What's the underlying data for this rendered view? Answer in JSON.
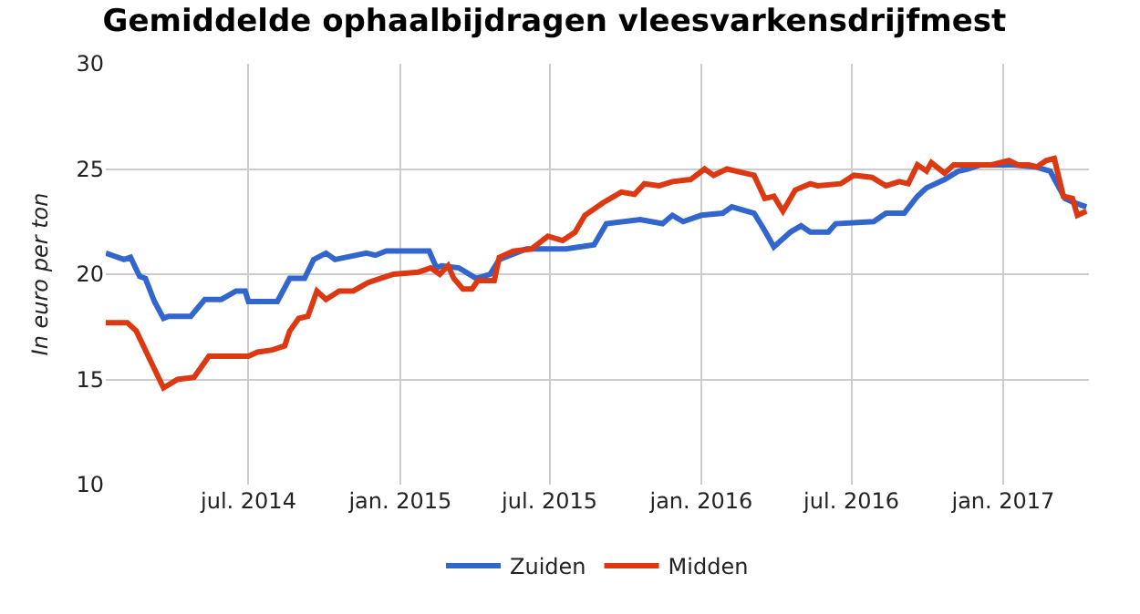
{
  "chart_data": {
    "type": "line",
    "title": "Gemiddelde ophaalbijdragen vleesvarkensdrijfmest",
    "ylabel": "In euro per ton",
    "xlim": [
      "2014-01-09",
      "2017-04-15"
    ],
    "xticks": [
      {
        "value": "2014-07-01",
        "label": "jul. 2014"
      },
      {
        "value": "2015-01-01",
        "label": "jan. 2015"
      },
      {
        "value": "2015-07-01",
        "label": "jul. 2015"
      },
      {
        "value": "2016-01-01",
        "label": "jan. 2016"
      },
      {
        "value": "2016-07-01",
        "label": "jul. 2016"
      },
      {
        "value": "2017-01-01",
        "label": "jan. 2017"
      }
    ],
    "ylim": [
      10,
      30
    ],
    "yticks": [
      10,
      15,
      20,
      25,
      30
    ],
    "grid": true,
    "legend": "bottom",
    "marker": "none",
    "line_style": "solid",
    "series": [
      {
        "name": "Zuiden",
        "color": "#3366cc",
        "x": [
          "2014-01-09",
          "2014-01-31",
          "2014-02-08",
          "2014-02-19",
          "2014-02-26",
          "2014-03-09",
          "2014-03-20",
          "2014-03-26",
          "2014-04-22",
          "2014-05-09",
          "2014-05-29",
          "2014-06-16",
          "2014-06-27",
          "2014-07-01",
          "2014-08-05",
          "2014-08-20",
          "2014-09-07",
          "2014-09-18",
          "2014-10-03",
          "2014-10-14",
          "2014-11-21",
          "2014-12-02",
          "2014-12-15",
          "2015-02-05",
          "2015-02-14",
          "2015-02-20",
          "2015-03-13",
          "2015-04-03",
          "2015-04-20",
          "2015-05-01",
          "2015-06-03",
          "2015-06-24",
          "2015-07-21",
          "2015-08-24",
          "2015-09-08",
          "2015-10-19",
          "2015-11-15",
          "2015-11-27",
          "2015-12-10",
          "2016-01-01",
          "2016-01-27",
          "2016-02-07",
          "2016-03-05",
          "2016-03-16",
          "2016-03-29",
          "2016-04-18",
          "2016-05-01",
          "2016-05-12",
          "2016-06-03",
          "2016-06-12",
          "2016-07-28",
          "2016-08-12",
          "2016-09-03",
          "2016-09-19",
          "2016-09-30",
          "2016-10-22",
          "2016-11-08",
          "2016-11-19",
          "2016-12-05",
          "2017-01-10",
          "2017-02-09",
          "2017-02-27",
          "2017-03-10",
          "2017-03-17",
          "2017-03-28",
          "2017-04-12"
        ],
        "values": [
          21.0,
          20.7,
          20.8,
          19.9,
          19.8,
          18.7,
          17.9,
          18.0,
          18.0,
          18.8,
          18.8,
          19.2,
          19.2,
          18.7,
          18.7,
          19.8,
          19.8,
          20.7,
          21.0,
          20.7,
          21.0,
          20.9,
          21.1,
          21.1,
          20.3,
          20.4,
          20.3,
          19.8,
          20.0,
          20.7,
          21.2,
          21.2,
          21.2,
          21.4,
          22.4,
          22.6,
          22.4,
          22.8,
          22.5,
          22.8,
          22.9,
          23.2,
          22.9,
          22.2,
          21.3,
          22.0,
          22.3,
          22.0,
          22.0,
          22.4,
          22.5,
          22.9,
          22.9,
          23.7,
          24.1,
          24.5,
          24.9,
          25.0,
          25.2,
          25.2,
          25.1,
          24.9,
          24.1,
          23.6,
          23.4,
          23.2
        ]
      },
      {
        "name": "Midden",
        "color": "#dc3912",
        "x": [
          "2014-01-09",
          "2014-02-04",
          "2014-02-15",
          "2014-03-04",
          "2014-03-20",
          "2014-04-06",
          "2014-04-26",
          "2014-05-14",
          "2014-07-01",
          "2014-07-12",
          "2014-07-30",
          "2014-08-14",
          "2014-08-20",
          "2014-08-31",
          "2014-09-11",
          "2014-09-22",
          "2014-10-03",
          "2014-10-19",
          "2014-11-05",
          "2014-11-23",
          "2014-12-08",
          "2014-12-24",
          "2015-01-23",
          "2015-02-07",
          "2015-02-18",
          "2015-02-28",
          "2015-03-07",
          "2015-03-18",
          "2015-03-29",
          "2015-04-05",
          "2015-04-25",
          "2015-05-01",
          "2015-05-18",
          "2015-06-09",
          "2015-06-29",
          "2015-07-17",
          "2015-08-01",
          "2015-08-13",
          "2015-09-04",
          "2015-09-26",
          "2015-10-12",
          "2015-10-24",
          "2015-11-11",
          "2015-11-27",
          "2015-12-19",
          "2016-01-05",
          "2016-01-16",
          "2016-02-01",
          "2016-02-23",
          "2016-03-05",
          "2016-03-18",
          "2016-03-29",
          "2016-04-09",
          "2016-04-24",
          "2016-05-12",
          "2016-05-21",
          "2016-06-18",
          "2016-07-04",
          "2016-07-26",
          "2016-08-12",
          "2016-08-28",
          "2016-09-08",
          "2016-09-19",
          "2016-09-30",
          "2016-10-06",
          "2016-10-22",
          "2016-11-02",
          "2016-12-18",
          "2017-01-08",
          "2017-01-19",
          "2017-02-01",
          "2017-02-11",
          "2017-02-22",
          "2017-03-04",
          "2017-03-15",
          "2017-03-26",
          "2017-04-01",
          "2017-04-12"
        ],
        "values": [
          17.7,
          17.7,
          17.3,
          15.9,
          14.6,
          15.0,
          15.1,
          16.1,
          16.1,
          16.3,
          16.4,
          16.6,
          17.3,
          17.9,
          18.0,
          19.2,
          18.8,
          19.2,
          19.2,
          19.6,
          19.8,
          20.0,
          20.1,
          20.3,
          20.0,
          20.4,
          19.8,
          19.3,
          19.3,
          19.7,
          19.7,
          20.8,
          21.1,
          21.2,
          21.8,
          21.6,
          22.0,
          22.8,
          23.4,
          23.9,
          23.8,
          24.3,
          24.2,
          24.4,
          24.5,
          25.0,
          24.7,
          25.0,
          24.8,
          24.7,
          23.6,
          23.7,
          23.0,
          24.0,
          24.3,
          24.2,
          24.3,
          24.7,
          24.6,
          24.2,
          24.4,
          24.3,
          25.2,
          24.9,
          25.3,
          24.8,
          25.2,
          25.2,
          25.4,
          25.2,
          25.2,
          25.1,
          25.4,
          25.5,
          23.7,
          23.6,
          22.8,
          23.0
        ]
      }
    ]
  }
}
